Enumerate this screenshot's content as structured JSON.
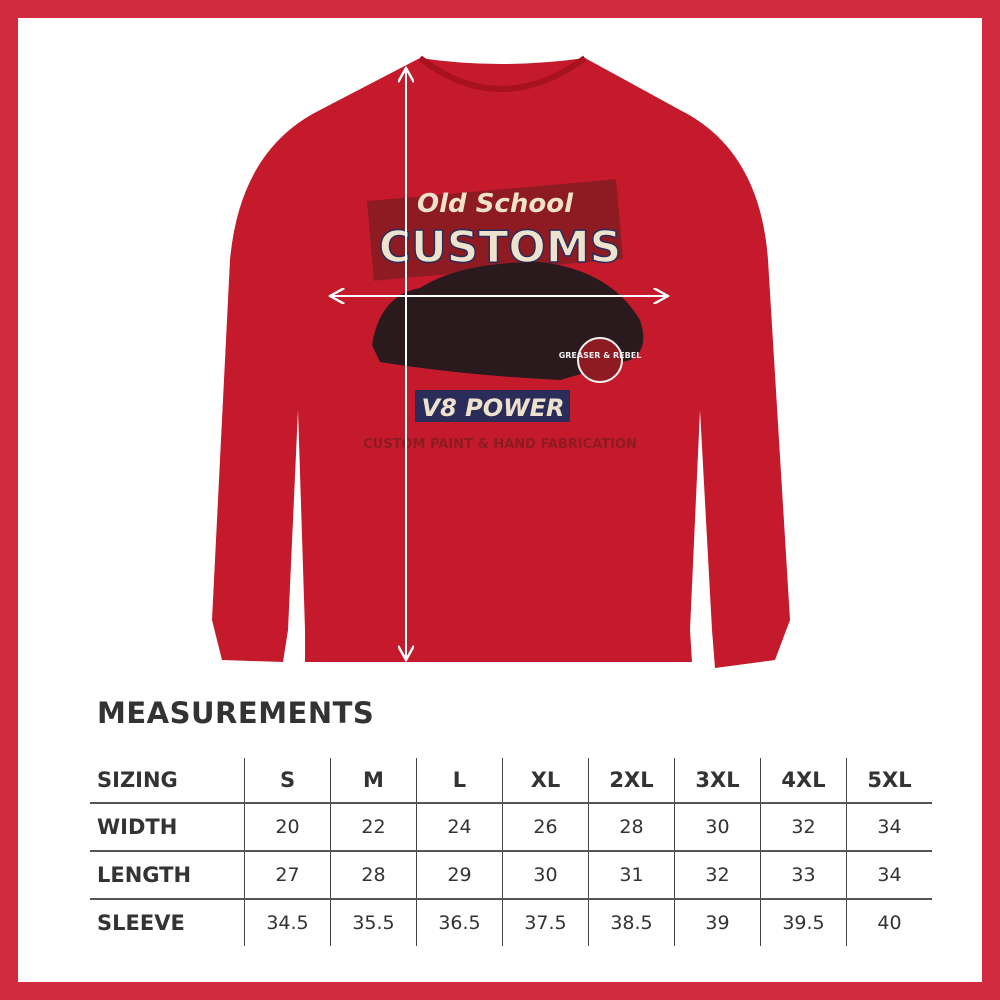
{
  "artwork": {
    "script_title": "Old School",
    "main_title": "CUSTOMS",
    "badge": "GREASER & REBEL",
    "banner": "V8 POWER",
    "arc_text": "CUSTOM PAINT & HAND FABRICATION"
  },
  "colors": {
    "frame": "#d22a3e",
    "garment": "#c41a2b"
  },
  "measurements": {
    "title": "MEASUREMENTS",
    "header": {
      "label": "SIZING",
      "sizes": [
        "S",
        "M",
        "L",
        "XL",
        "2XL",
        "3XL",
        "4XL",
        "5XL"
      ]
    },
    "rows": [
      {
        "label": "WIDTH",
        "values": [
          "20",
          "22",
          "24",
          "26",
          "28",
          "30",
          "32",
          "34"
        ]
      },
      {
        "label": "LENGTH",
        "values": [
          "27",
          "28",
          "29",
          "30",
          "31",
          "32",
          "33",
          "34"
        ]
      },
      {
        "label": "SLEEVE",
        "values": [
          "34.5",
          "35.5",
          "36.5",
          "37.5",
          "38.5",
          "39",
          "39.5",
          "40"
        ]
      }
    ]
  }
}
